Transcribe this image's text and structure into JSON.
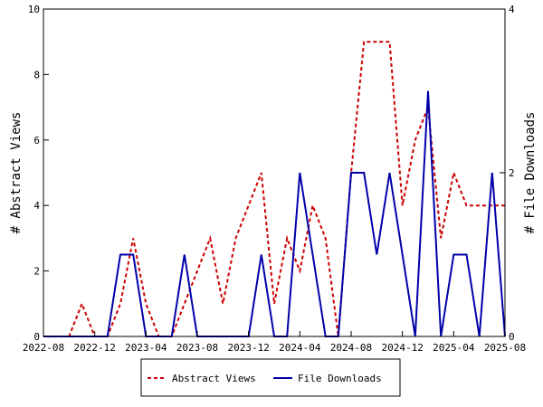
{
  "chart_data": {
    "type": "line",
    "title": "",
    "ylabel": "# Abstract Views",
    "y2label": "# File Downloads",
    "ylim": [
      0,
      10
    ],
    "y2lim": [
      0,
      4
    ],
    "yticks": [
      "0",
      "2",
      "4",
      "6",
      "8",
      "10"
    ],
    "y2ticks": [
      "0",
      "2",
      "4"
    ],
    "xticks": [
      "2022-08",
      "2022-12",
      "2023-04",
      "2023-08",
      "2023-12",
      "2024-04",
      "2024-08",
      "2024-12",
      "2025-04",
      "2025-08"
    ],
    "x": [
      "2022-08",
      "2022-09",
      "2022-10",
      "2022-11",
      "2022-12",
      "2023-01",
      "2023-02",
      "2023-03",
      "2023-04",
      "2023-05",
      "2023-06",
      "2023-07",
      "2023-08",
      "2023-09",
      "2023-10",
      "2023-11",
      "2023-12",
      "2024-01",
      "2024-02",
      "2024-03",
      "2024-04",
      "2024-05",
      "2024-06",
      "2024-07",
      "2024-08",
      "2024-09",
      "2024-10",
      "2024-11",
      "2024-12",
      "2025-01",
      "2025-02",
      "2025-03",
      "2025-04",
      "2025-05",
      "2025-06",
      "2025-07",
      "2025-08"
    ],
    "grid": false,
    "legend_position": "bottom",
    "series": [
      {
        "name": "Abstract Views",
        "axis": "left",
        "color": "#cc0000",
        "style": "dashed",
        "values": [
          0,
          0,
          0,
          1,
          0,
          0,
          1,
          3,
          1,
          0,
          0,
          1,
          2,
          3,
          1,
          3,
          4,
          5,
          1,
          3,
          2,
          4,
          3,
          0,
          5,
          9,
          9,
          9,
          4,
          6,
          7,
          3,
          5,
          4,
          4,
          4,
          4
        ]
      },
      {
        "name": "File Downloads",
        "axis": "right",
        "color": "#0000aa",
        "style": "solid",
        "values": [
          0,
          0,
          0,
          0,
          0,
          0,
          1,
          1,
          0,
          0,
          0,
          1,
          0,
          0,
          0,
          0,
          0,
          1,
          0,
          0,
          2,
          1,
          0,
          0,
          2,
          2,
          1,
          2,
          1,
          0,
          3,
          0,
          1,
          1,
          0,
          2,
          0
        ]
      }
    ]
  }
}
